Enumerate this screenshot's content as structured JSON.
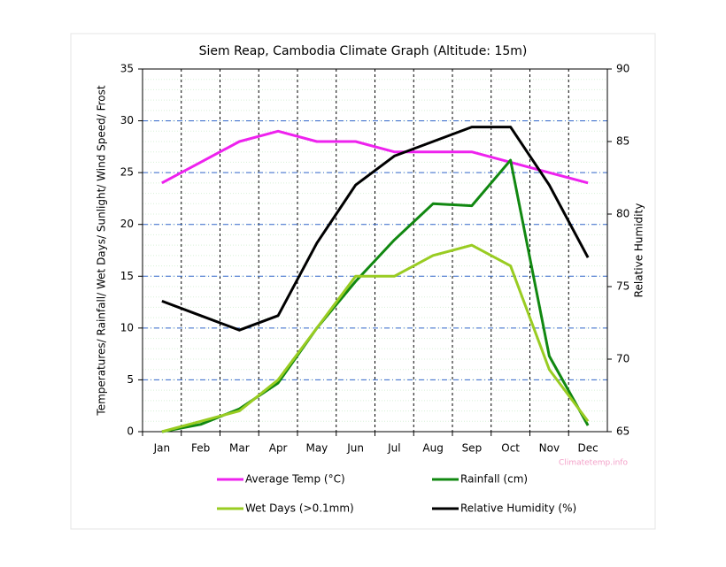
{
  "chart_data": {
    "type": "line",
    "title": "Siem Reap, Cambodia Climate Graph (Altitude: 15m)",
    "y_label": "Temperatures/ Rainfall/ Wet Days/ Sunlight/ Wind Speed/ Frost",
    "y2_label": "Relative Humidity",
    "watermark": "Climatetemp.info",
    "categories": [
      "Jan",
      "Feb",
      "Mar",
      "Apr",
      "May",
      "Jun",
      "Jul",
      "Aug",
      "Sep",
      "Oct",
      "Nov",
      "Dec"
    ],
    "ylim": [
      0,
      35
    ],
    "yticks": [
      0,
      5,
      10,
      15,
      20,
      25,
      30,
      35
    ],
    "y2lim": [
      65,
      90
    ],
    "y2ticks": [
      65,
      70,
      75,
      80,
      85,
      90
    ],
    "grid": true,
    "series": [
      {
        "name": "Average Temp (°C)",
        "color": "#ee22ee",
        "values": [
          24,
          26,
          28,
          29,
          28,
          28,
          27,
          27,
          27,
          26,
          25,
          24
        ]
      },
      {
        "name": "Rainfall (cm)",
        "color": "#118811",
        "values": [
          0,
          0.7,
          2.2,
          4.7,
          10,
          14.5,
          18.5,
          22,
          21.8,
          26.2,
          7.3,
          0.6
        ]
      },
      {
        "name": "Wet Days (>0.1mm)",
        "color": "#99cc22",
        "values": [
          0,
          1,
          2,
          5,
          10,
          15,
          15,
          17,
          18,
          16,
          6,
          1
        ]
      },
      {
        "name": "Relative Humidity (%)",
        "color": "#000000",
        "axis": "y2",
        "values": [
          74,
          73,
          72,
          73,
          78,
          82,
          84,
          85,
          86,
          86,
          82,
          77
        ]
      }
    ]
  }
}
